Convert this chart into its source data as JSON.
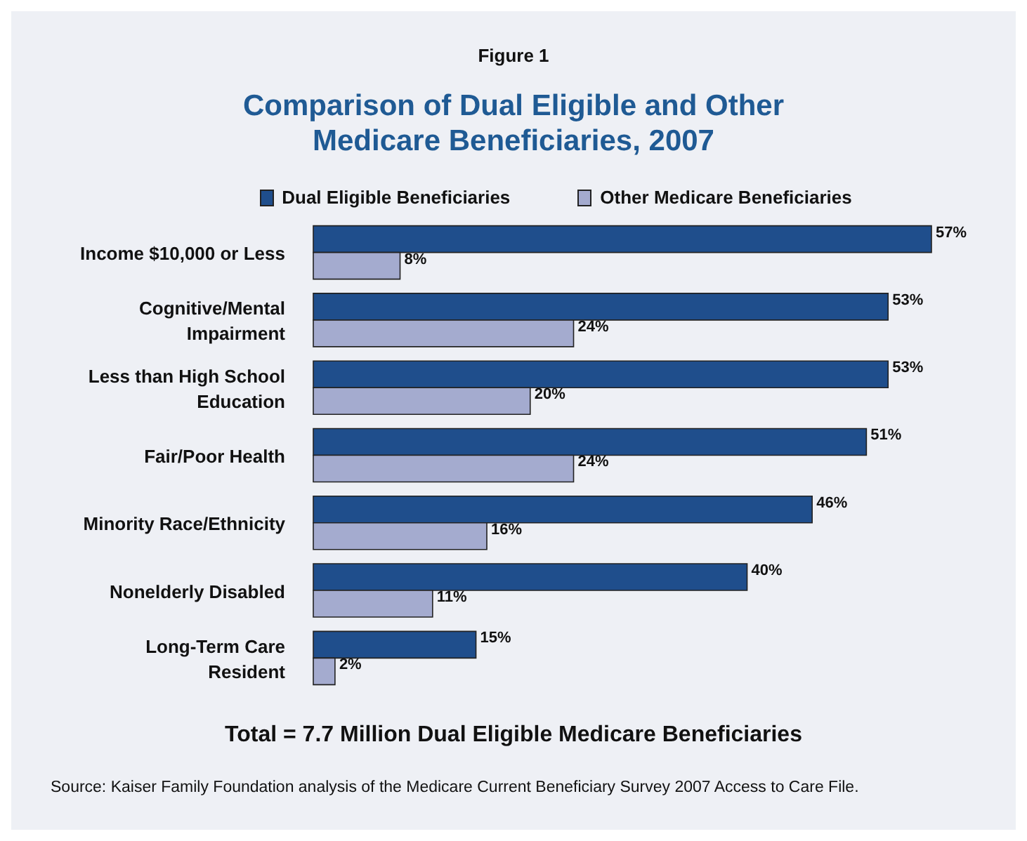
{
  "chart_data": {
    "type": "bar",
    "orientation": "horizontal",
    "title": "Figure 1",
    "subtitle": "Comparison of Dual Eligible and Other\nMedicare Beneficiaries, 2007",
    "categories": [
      "Income $10,000 or Less",
      "Cognitive/Mental\nImpairment",
      "Less than High School\nEducation",
      "Fair/Poor Health",
      "Minority Race/Ethnicity",
      "Nonelderly Disabled",
      "Long-Term Care\nResident"
    ],
    "series": [
      {
        "name": "Dual Eligible Beneficiaries",
        "color": "#1f4e8c",
        "values": [
          57,
          53,
          53,
          51,
          46,
          40,
          15
        ],
        "value_labels": [
          "57%",
          "53%",
          "53%",
          "51%",
          "46%",
          "40%",
          "15%"
        ]
      },
      {
        "name": "Other Medicare Beneficiaries",
        "color": "#a4abcf",
        "values": [
          8,
          24,
          20,
          24,
          16,
          11,
          2
        ],
        "value_labels": [
          "8%",
          "24%",
          "20%",
          "24%",
          "16%",
          "11%",
          "2%"
        ]
      }
    ],
    "legend": "top",
    "grid": false,
    "annotations": [
      "Total = 7.7 Million Dual Eligible Medicare Beneficiaries",
      "Source: Kaiser Family Foundation analysis of the Medicare Current Beneficiary Survey 2007 Access to Care File."
    ]
  }
}
